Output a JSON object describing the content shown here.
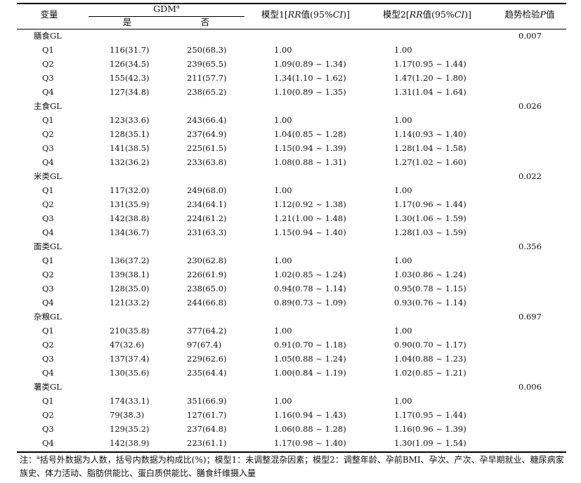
{
  "header": {
    "variable": "变量",
    "gdm": "GDM",
    "gdm_sup": "a",
    "yes": "是",
    "no": "否",
    "model1_prefix": "模型1[",
    "model1_rr": "RR",
    "model1_mid": "值(95%",
    "model1_ci": "CI",
    "model1_suffix": ")]",
    "model2_prefix": "模型2[",
    "model2_rr": "RR",
    "model2_mid": "值(95%",
    "model2_ci": "CI",
    "model2_suffix": ")]",
    "trend_prefix": "趋势检验",
    "trend_p": "P",
    "trend_suffix": "值"
  },
  "groups": [
    {
      "name": "膳食GL",
      "p": "0.007",
      "rows": [
        {
          "q": "Q1",
          "yes": "116(31.7)",
          "no": "250(68.3)",
          "m1": "1.00",
          "m2": "1.00"
        },
        {
          "q": "Q2",
          "yes": "126(34.5)",
          "no": "239(65.5)",
          "m1": "1.09(0.89 ~ 1.34)",
          "m2": "1.17(0.95 ~ 1.44)"
        },
        {
          "q": "Q3",
          "yes": "155(42.3)",
          "no": "211(57.7)",
          "m1": "1.34(1.10 ~ 1.62)",
          "m2": "1.47(1.20 ~ 1.80)"
        },
        {
          "q": "Q4",
          "yes": "127(34.8)",
          "no": "238(65.2)",
          "m1": "1.10(0.89 ~ 1.35)",
          "m2": "1.31(1.04 ~ 1.64)"
        }
      ]
    },
    {
      "name": "主食GL",
      "p": "0.026",
      "rows": [
        {
          "q": "Q1",
          "yes": "123(33.6)",
          "no": "243(66.4)",
          "m1": "1.00",
          "m2": "1.00"
        },
        {
          "q": "Q2",
          "yes": "128(35.1)",
          "no": "237(64.9)",
          "m1": "1.04(0.85 ~ 1.28)",
          "m2": "1.14(0.93 ~ 1.40)"
        },
        {
          "q": "Q3",
          "yes": "141(38.5)",
          "no": "225(61.5)",
          "m1": "1.15(0.94 ~ 1.39)",
          "m2": "1.28(1.04 ~ 1.58)"
        },
        {
          "q": "Q4",
          "yes": "132(36.2)",
          "no": "233(63.8)",
          "m1": "1.08(0.88 ~ 1.31)",
          "m2": "1.27(1.02 ~ 1.60)"
        }
      ]
    },
    {
      "name": "米类GL",
      "p": "0.022",
      "rows": [
        {
          "q": "Q1",
          "yes": "117(32.0)",
          "no": "249(68.0)",
          "m1": "1.00",
          "m2": "1.00"
        },
        {
          "q": "Q2",
          "yes": "131(35.9)",
          "no": "234(64.1)",
          "m1": "1.12(0.92 ~ 1.38)",
          "m2": "1.17(0.96 ~ 1.44)"
        },
        {
          "q": "Q3",
          "yes": "142(38.8)",
          "no": "224(61.2)",
          "m1": "1.21(1.00 ~ 1.48)",
          "m2": "1.30(1.06 ~ 1.59)"
        },
        {
          "q": "Q4",
          "yes": "134(36.7)",
          "no": "231(63.3)",
          "m1": "1.15(0.94 ~ 1.40)",
          "m2": "1.28(1.03 ~ 1.59)"
        }
      ]
    },
    {
      "name": "面类GL",
      "p": "0.356",
      "rows": [
        {
          "q": "Q1",
          "yes": "136(37.2)",
          "no": "230(62.8)",
          "m1": "1.00",
          "m2": "1.00"
        },
        {
          "q": "Q2",
          "yes": "139(38.1)",
          "no": "226(61.9)",
          "m1": "1.02(0.85 ~ 1.24)",
          "m2": "1.03(0.86 ~ 1.24)"
        },
        {
          "q": "Q3",
          "yes": "128(35.0)",
          "no": "238(65.0)",
          "m1": "0.94(0.78 ~ 1.14)",
          "m2": "0.95(0.78 ~ 1.15)"
        },
        {
          "q": "Q4",
          "yes": "121(33.2)",
          "no": "244(66.8)",
          "m1": "0.89(0.73 ~ 1.09)",
          "m2": "0.93(0.76 ~ 1.14)"
        }
      ]
    },
    {
      "name": "杂粮GL",
      "p": "0.697",
      "rows": [
        {
          "q": "Q1",
          "yes": "210(35.8)",
          "no": "377(64.2)",
          "m1": "1.00",
          "m2": "1.00"
        },
        {
          "q": "Q2",
          "yes": "47(32.6)",
          "no": "97(67.4)",
          "m1": "0.91(0.70 ~ 1.18)",
          "m2": "0.90(0.70 ~ 1.17)"
        },
        {
          "q": "Q3",
          "yes": "137(37.4)",
          "no": "229(62.6)",
          "m1": "1.05(0.88 ~ 1.24)",
          "m2": "1.04(0.88 ~ 1.23)"
        },
        {
          "q": "Q4",
          "yes": "130(35.6)",
          "no": "235(64.4)",
          "m1": "1.00(0.84 ~ 1.19)",
          "m2": "1.02(0.85 ~ 1.21)"
        }
      ]
    },
    {
      "name": "薯类GL",
      "p": "0.006",
      "rows": [
        {
          "q": "Q1",
          "yes": "174(33.1)",
          "no": "351(66.9)",
          "m1": "1.00",
          "m2": "1.00"
        },
        {
          "q": "Q2",
          "yes": "79(38.3)",
          "no": "127(61.7)",
          "m1": "1.16(0.94 ~ 1.43)",
          "m2": "1.17(0.95 ~ 1.44)"
        },
        {
          "q": "Q3",
          "yes": "129(35.2)",
          "no": "237(64.8)",
          "m1": "1.06(0.88 ~ 1.28)",
          "m2": "1.16(0.96 ~ 1.39)"
        },
        {
          "q": "Q4",
          "yes": "142(38.9)",
          "no": "223(61.1)",
          "m1": "1.17(0.98 ~ 1.40)",
          "m2": "1.30(1.09 ~ 1.54)"
        }
      ]
    }
  ],
  "note": {
    "prefix": "注：",
    "sup": "a",
    "text": "括号外数据为人数，括号内数据为构成比(%)；模型1：未调整混杂因素；模型2：调整年龄、孕前BMI、孕次、产次、孕早期就业、糖尿病家族史、体力活动、脂肪供能比、蛋白质供能比、膳食纤维摄入量"
  }
}
